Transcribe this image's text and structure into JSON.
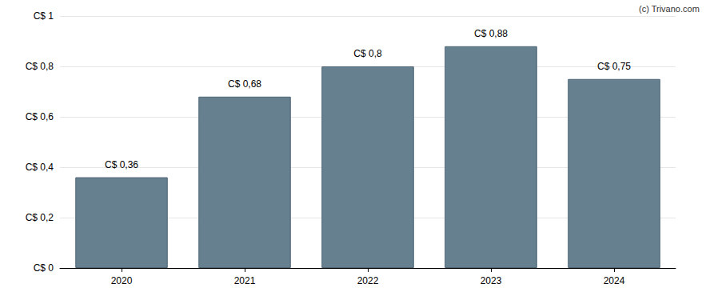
{
  "chart_data": {
    "type": "bar",
    "source": "(c) Trivano.com",
    "categories": [
      "2020",
      "2021",
      "2022",
      "2023",
      "2024"
    ],
    "values": [
      0.36,
      0.68,
      0.8,
      0.88,
      0.75
    ],
    "value_labels": [
      "C$ 0,36",
      "C$ 0,68",
      "C$ 0,8",
      "C$ 0,88",
      "C$ 0,75"
    ],
    "data_labels": true,
    "color": "#66808f",
    "ylim": [
      0,
      1
    ],
    "yticks": [
      {
        "value": 0,
        "label": "C$ 0"
      },
      {
        "value": 0.2,
        "label": "C$ 0,2"
      },
      {
        "value": 0.4,
        "label": "C$ 0,4"
      },
      {
        "value": 0.6,
        "label": "C$ 0,6"
      },
      {
        "value": 0.8,
        "label": "C$ 0,8"
      },
      {
        "value": 1,
        "label": "C$ 1"
      }
    ],
    "grid": true
  }
}
